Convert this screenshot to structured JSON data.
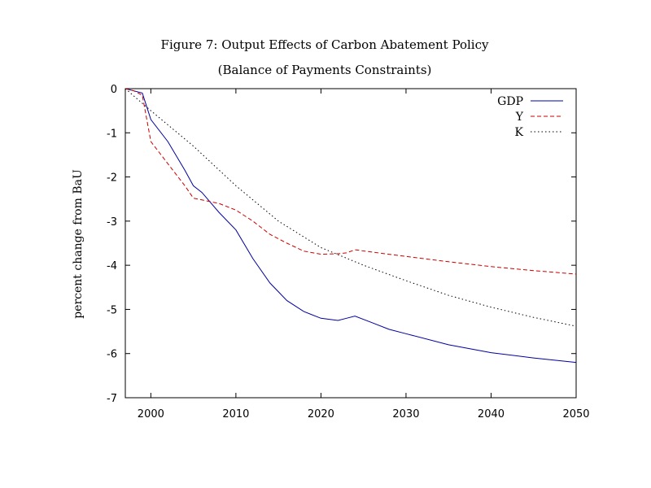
{
  "chart_data": {
    "type": "line",
    "title": "Figure 7: Output Effects of Carbon Abatement Policy",
    "subtitle": "(Balance of Payments Constraints)",
    "xlabel": "",
    "ylabel": "percent change from BaU",
    "xlim": [
      1997,
      2050
    ],
    "ylim": [
      -7,
      0
    ],
    "xticks": [
      2000,
      2010,
      2020,
      2030,
      2040,
      2050
    ],
    "yticks": [
      0,
      -1,
      -2,
      -3,
      -4,
      -5,
      -6,
      -7
    ],
    "grid": false,
    "legend_position": "top-right",
    "series": [
      {
        "name": "GDP",
        "color": "#0000a0",
        "style": "solid",
        "x": [
          1997,
          1998,
          1999,
          2000,
          2002,
          2004,
          2005,
          2006,
          2008,
          2010,
          2012,
          2014,
          2016,
          2018,
          2020,
          2022,
          2023,
          2024,
          2026,
          2028,
          2030,
          2035,
          2040,
          2045,
          2050
        ],
        "y": [
          0,
          -0.05,
          -0.1,
          -0.7,
          -1.2,
          -1.85,
          -2.2,
          -2.35,
          -2.8,
          -3.2,
          -3.85,
          -4.4,
          -4.8,
          -5.05,
          -5.2,
          -5.25,
          -5.2,
          -5.15,
          -5.3,
          -5.45,
          -5.55,
          -5.8,
          -5.98,
          -6.1,
          -6.2
        ]
      },
      {
        "name": "Y",
        "color": "#cc0000",
        "style": "dashed",
        "x": [
          1997,
          1998,
          1999,
          2000,
          2002,
          2004,
          2005,
          2006,
          2008,
          2010,
          2012,
          2014,
          2016,
          2018,
          2020,
          2022,
          2023,
          2024,
          2026,
          2030,
          2035,
          2040,
          2045,
          2050
        ],
        "y": [
          0,
          -0.05,
          -0.15,
          -1.2,
          -1.7,
          -2.2,
          -2.48,
          -2.52,
          -2.6,
          -2.75,
          -3.0,
          -3.3,
          -3.5,
          -3.68,
          -3.75,
          -3.74,
          -3.72,
          -3.65,
          -3.7,
          -3.8,
          -3.92,
          -4.03,
          -4.12,
          -4.2
        ]
      },
      {
        "name": "K",
        "color": "#000000",
        "style": "dotted",
        "x": [
          1997,
          2000,
          2005,
          2010,
          2015,
          2020,
          2025,
          2030,
          2035,
          2040,
          2045,
          2050
        ],
        "y": [
          0,
          -0.5,
          -1.3,
          -2.2,
          -3.0,
          -3.6,
          -4.0,
          -4.35,
          -4.68,
          -4.95,
          -5.18,
          -5.38
        ]
      }
    ]
  }
}
